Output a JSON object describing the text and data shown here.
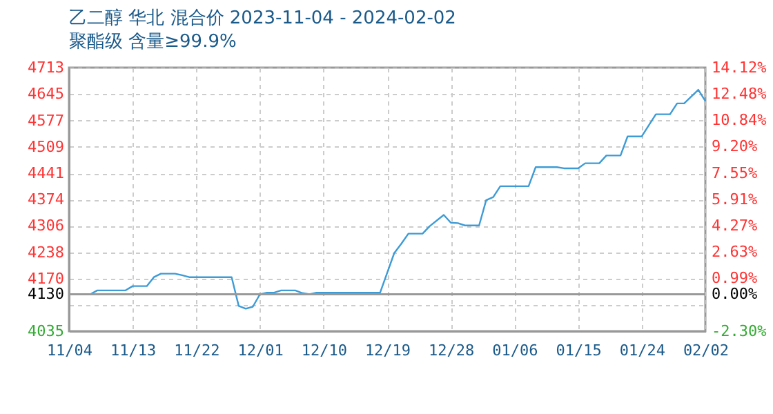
{
  "chart_data": {
    "type": "line",
    "title": "乙二醇 华北 混合价 2023-11-04 - 2024-02-02",
    "subtitle": "聚酯级 含量≥99.9%",
    "x": [
      "2023-11-04",
      "2023-11-07",
      "2023-11-08",
      "2023-11-12",
      "2023-11-13",
      "2023-11-15",
      "2023-11-16",
      "2023-11-17",
      "2023-11-19",
      "2023-11-20",
      "2023-11-21",
      "2023-11-27",
      "2023-11-28",
      "2023-11-29",
      "2023-11-30",
      "2023-12-01",
      "2023-12-02",
      "2023-12-03",
      "2023-12-04",
      "2023-12-06",
      "2023-12-07",
      "2023-12-08",
      "2023-12-09",
      "2023-12-18",
      "2023-12-20",
      "2023-12-21",
      "2023-12-22",
      "2023-12-24",
      "2023-12-25",
      "2023-12-27",
      "2023-12-28",
      "2023-12-29",
      "2023-12-30",
      "2024-01-01",
      "2024-01-02",
      "2024-01-03",
      "2024-01-04",
      "2024-01-08",
      "2024-01-09",
      "2024-01-12",
      "2024-01-13",
      "2024-01-15",
      "2024-01-16",
      "2024-01-18",
      "2024-01-19",
      "2024-01-21",
      "2024-01-22",
      "2024-01-24",
      "2024-01-26",
      "2024-01-28",
      "2024-01-29",
      "2024-01-30",
      "2024-02-01",
      "2024-02-02"
    ],
    "series": [
      {
        "color": "#3d9bd6",
        "values": [
          4130,
          4130,
          4140,
          4140,
          4151,
          4151,
          4174,
          4183,
          4183,
          4179,
          4174,
          4174,
          4100,
          4093,
          4098,
          4130,
          4134,
          4134,
          4140,
          4140,
          4133,
          4130,
          4134,
          4134,
          4236,
          4260,
          4286,
          4286,
          4305,
          4334,
          4314,
          4313,
          4307,
          4307,
          4372,
          4380,
          4408,
          4408,
          4457,
          4457,
          4454,
          4454,
          4467,
          4467,
          4487,
          4487,
          4536,
          4536,
          4593,
          4593,
          4621,
          4621,
          4656,
          4627
        ]
      }
    ],
    "xlim": [
      "2023-11-04",
      "2024-02-02"
    ],
    "xticks": [
      {
        "value": "2023-11-04",
        "label": "11/04"
      },
      {
        "value": "2023-11-13",
        "label": "11/13"
      },
      {
        "value": "2023-11-22",
        "label": "11/22"
      },
      {
        "value": "2023-12-01",
        "label": "12/01"
      },
      {
        "value": "2023-12-10",
        "label": "12/10"
      },
      {
        "value": "2023-12-19",
        "label": "12/19"
      },
      {
        "value": "2023-12-28",
        "label": "12/28"
      },
      {
        "value": "2024-01-06",
        "label": "01/06"
      },
      {
        "value": "2024-01-15",
        "label": "01/15"
      },
      {
        "value": "2024-01-24",
        "label": "01/24"
      },
      {
        "value": "2024-02-02",
        "label": "02/02"
      }
    ],
    "ylim": [
      4035,
      4713
    ],
    "yticks": [
      4035,
      {
        "value": 4103,
        "label": null
      },
      4130,
      4170,
      4238,
      4306,
      4374,
      4441,
      4509,
      4577,
      4645,
      4713
    ],
    "y2lim": [
      -2.3,
      14.12
    ],
    "y2ticks": [
      {
        "value": -2.3,
        "label": "-2.30%"
      },
      {
        "value": -0.66,
        "label": null
      },
      {
        "value": 0,
        "label": "0.00%"
      },
      {
        "value": 0.99,
        "label": "0.99%"
      },
      {
        "value": 2.63,
        "label": "2.63%"
      },
      {
        "value": 4.27,
        "label": "4.27%"
      },
      {
        "value": 5.91,
        "label": "5.91%"
      },
      {
        "value": 7.55,
        "label": "7.55%"
      },
      {
        "value": 9.2,
        "label": "9.20%"
      },
      {
        "value": 10.84,
        "label": "10.84%"
      },
      {
        "value": 12.48,
        "label": "12.48%"
      },
      {
        "value": 14.12,
        "label": "14.12%"
      }
    ],
    "ref_lines": [
      {
        "axis": "y",
        "value": 4130,
        "color": "#999999"
      }
    ],
    "grid": true,
    "legend": false,
    "marker": "none",
    "line_style": "solid"
  }
}
